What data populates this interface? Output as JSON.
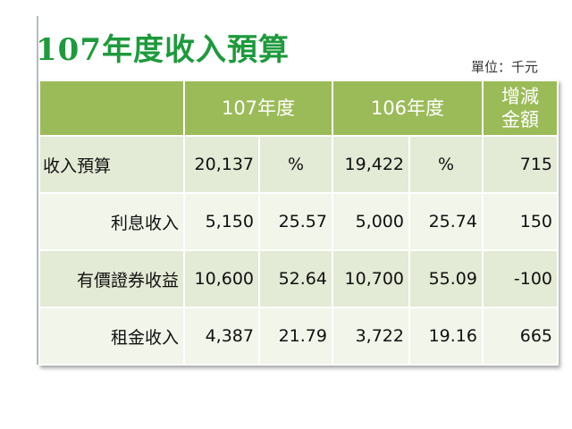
{
  "title": "107年度收入預算",
  "unit": "單位：千元",
  "header": {
    "col1": "107年度",
    "col2": "106年度",
    "col3": "增減金額"
  },
  "rows": [
    {
      "label": "收入預算",
      "v107": "20,137",
      "p107": "%",
      "v106": "19,422",
      "p106": "%",
      "diff": "715"
    },
    {
      "label": "利息收入",
      "v107": "5,150",
      "p107": "25.57",
      "v106": "5,000",
      "p106": "25.74",
      "diff": "150"
    },
    {
      "label": "有價證券收益",
      "v107": "10,600",
      "p107": "52.64",
      "v106": "10,700",
      "p106": "55.09",
      "diff": "-100"
    },
    {
      "label": "租金收入",
      "v107": "4,387",
      "p107": "21.79",
      "v106": "3,722",
      "p106": "19.16",
      "diff": "665"
    }
  ],
  "colors": {
    "title": "#1e9a3c",
    "header_bg": "#9bbb59",
    "row_odd": "#e3ead5",
    "row_even": "#f1f5ea"
  }
}
